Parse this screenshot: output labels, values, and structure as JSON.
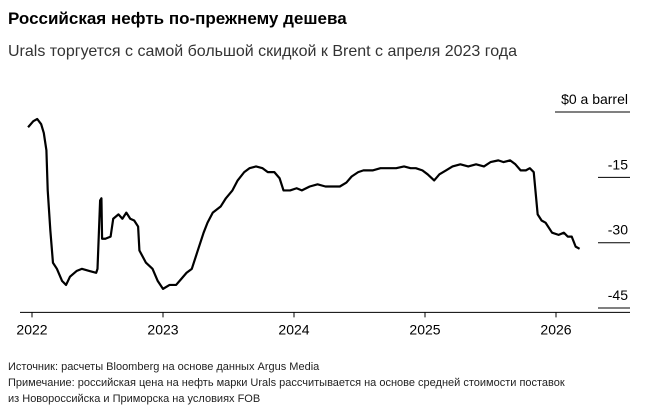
{
  "chart_data": {
    "type": "line",
    "title": "Российская нефть по-прежнему дешева",
    "subtitle": "Urals торгуется с самой большой скидкой к Brent с апреля 2023 года",
    "x": [
      2021.97,
      2022.01,
      2022.04,
      2022.07,
      2022.09,
      2022.11,
      2022.12,
      2022.14,
      2022.16,
      2022.19,
      2022.23,
      2022.26,
      2022.29,
      2022.34,
      2022.38,
      2022.44,
      2022.49,
      2022.5,
      2022.52,
      2022.53,
      2022.535,
      2022.56,
      2022.6,
      2022.62,
      2022.66,
      2022.69,
      2022.72,
      2022.75,
      2022.78,
      2022.81,
      2022.82,
      2022.87,
      2022.92,
      2022.96,
      2023.0,
      2023.05,
      2023.1,
      2023.14,
      2023.18,
      2023.22,
      2023.26,
      2023.31,
      2023.34,
      2023.38,
      2023.44,
      2023.48,
      2023.53,
      2023.57,
      2023.62,
      2023.66,
      2023.71,
      2023.76,
      2023.8,
      2023.85,
      2023.89,
      2023.92,
      2023.97,
      2024.02,
      2024.06,
      2024.12,
      2024.18,
      2024.24,
      2024.31,
      2024.35,
      2024.4,
      2024.44,
      2024.49,
      2024.53,
      2024.6,
      2024.66,
      2024.72,
      2024.78,
      2024.84,
      2024.89,
      2024.93,
      2024.98,
      2025.02,
      2025.07,
      2025.11,
      2025.16,
      2025.21,
      2025.27,
      2025.33,
      2025.39,
      2025.45,
      2025.5,
      2025.56,
      2025.6,
      2025.65,
      2025.69,
      2025.73,
      2025.77,
      2025.8,
      2025.83,
      2025.86,
      2025.89,
      2025.92,
      2025.97,
      2026.02,
      2026.06,
      2026.09,
      2026.12,
      2026.15,
      2026.18
    ],
    "series": [
      {
        "color": "#000000",
        "values": [
          -3.5,
          -2.1,
          -1.6,
          -2.8,
          -4.8,
          -8.8,
          -18.0,
          -27.2,
          -34.6,
          -36.0,
          -38.8,
          -39.7,
          -37.8,
          -36.5,
          -36.0,
          -36.5,
          -36.9,
          -36.0,
          -20.3,
          -19.8,
          -29.1,
          -29.1,
          -28.6,
          -24.5,
          -23.5,
          -24.5,
          -23.1,
          -24.5,
          -24.9,
          -26.3,
          -31.8,
          -34.6,
          -36.0,
          -38.8,
          -40.6,
          -39.7,
          -39.7,
          -38.3,
          -36.9,
          -36.0,
          -32.3,
          -27.7,
          -25.4,
          -23.1,
          -21.7,
          -19.8,
          -18.0,
          -15.7,
          -13.8,
          -12.9,
          -12.5,
          -12.9,
          -13.8,
          -13.8,
          -15.2,
          -18.0,
          -18.0,
          -17.5,
          -18.0,
          -17.1,
          -16.6,
          -17.1,
          -17.1,
          -17.1,
          -16.2,
          -14.8,
          -13.8,
          -13.4,
          -13.4,
          -12.9,
          -12.9,
          -12.9,
          -12.5,
          -12.9,
          -12.9,
          -13.4,
          -14.3,
          -15.7,
          -14.3,
          -13.4,
          -12.5,
          -12.0,
          -12.5,
          -12.0,
          -12.5,
          -11.5,
          -11.1,
          -11.5,
          -11.1,
          -12.0,
          -13.4,
          -13.4,
          -12.9,
          -13.8,
          -23.5,
          -24.9,
          -25.4,
          -27.7,
          -28.2,
          -27.7,
          -28.6,
          -28.6,
          -30.9,
          -31.4
        ]
      }
    ],
    "xlim": [
      2021.9,
      2026.4
    ],
    "xticks": [
      2022,
      2023,
      2024,
      2025,
      2026
    ],
    "ylim": [
      -46,
      2
    ],
    "yticks": [
      {
        "value": 0,
        "label": "$0 a barrel"
      },
      -15,
      -30,
      -45
    ],
    "source": "Источник: расчеты Bloomberg на основе данных Argus Media",
    "note": [
      "Примечание: российская цена на нефть марки Urals рассчитывается на основе средней стоимости поставок",
      "из Новороссийска и Приморска на условиях FOB"
    ]
  }
}
